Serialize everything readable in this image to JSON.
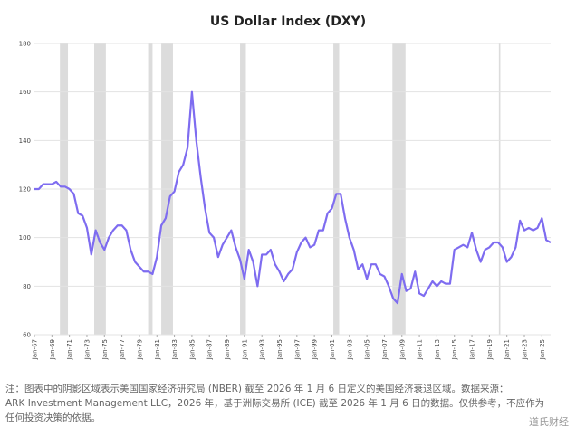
{
  "chart_data": {
    "type": "line",
    "title": "US Dollar Index (DXY)",
    "x": [
      "Jan-67",
      "Jul-67",
      "Jan-68",
      "Jul-68",
      "Jan-69",
      "Jul-69",
      "Jan-70",
      "Jul-70",
      "Jan-71",
      "Jul-71",
      "Jan-72",
      "Jul-72",
      "Jan-73",
      "Jul-73",
      "Jan-74",
      "Jul-74",
      "Jan-75",
      "Jul-75",
      "Jan-76",
      "Jul-76",
      "Jan-77",
      "Jul-77",
      "Jan-78",
      "Jul-78",
      "Jan-79",
      "Jul-79",
      "Jan-80",
      "Jul-80",
      "Jan-81",
      "Jul-81",
      "Jan-82",
      "Jul-82",
      "Jan-83",
      "Jul-83",
      "Jan-84",
      "Jul-84",
      "Jan-85",
      "Jul-85",
      "Jan-86",
      "Jul-86",
      "Jan-87",
      "Jul-87",
      "Jan-88",
      "Jul-88",
      "Jan-89",
      "Jul-89",
      "Jan-90",
      "Jul-90",
      "Jan-91",
      "Jul-91",
      "Jan-92",
      "Jul-92",
      "Jan-93",
      "Jul-93",
      "Jan-94",
      "Jul-94",
      "Jan-95",
      "Jul-95",
      "Jan-96",
      "Jul-96",
      "Jan-97",
      "Jul-97",
      "Jan-98",
      "Jul-98",
      "Jan-99",
      "Jul-99",
      "Jan-00",
      "Jul-00",
      "Jan-01",
      "Jul-01",
      "Jan-02",
      "Jul-02",
      "Jan-03",
      "Jul-03",
      "Jan-04",
      "Jul-04",
      "Jan-05",
      "Jul-05",
      "Jan-06",
      "Jul-06",
      "Jan-07",
      "Jul-07",
      "Jan-08",
      "Jul-08",
      "Jan-09",
      "Jul-09",
      "Jan-10",
      "Jul-10",
      "Jan-11",
      "Jul-11",
      "Jan-12",
      "Jul-12",
      "Jan-13",
      "Jul-13",
      "Jan-14",
      "Jul-14",
      "Jan-15",
      "Jul-15",
      "Jan-16",
      "Jul-16",
      "Jan-17",
      "Jul-17",
      "Jan-18",
      "Jul-18",
      "Jan-19",
      "Jul-19",
      "Jan-20",
      "Jul-20",
      "Jan-21",
      "Jul-21",
      "Jan-22",
      "Jul-22",
      "Jan-23",
      "Jul-23",
      "Jan-24",
      "Jul-24",
      "Jan-25",
      "Jul-25",
      "Jan-26"
    ],
    "series": [
      {
        "color": "#7e6cf0",
        "values": [
          120,
          120,
          122,
          122,
          122,
          123,
          121,
          121,
          120,
          118,
          110,
          109,
          104,
          93,
          103,
          98,
          95,
          100,
          103,
          105,
          105,
          103,
          95,
          90,
          88,
          86,
          86,
          85,
          92,
          105,
          108,
          117,
          119,
          127,
          130,
          137,
          160,
          140,
          125,
          112,
          102,
          100,
          92,
          97,
          100,
          103,
          96,
          91,
          83,
          95,
          90,
          80,
          93,
          93,
          95,
          89,
          86,
          82,
          85,
          87,
          94,
          98,
          100,
          96,
          97,
          103,
          103,
          110,
          112,
          118,
          118,
          108,
          100,
          95,
          87,
          89,
          83,
          89,
          89,
          85,
          84,
          80,
          75,
          73,
          85,
          78,
          79,
          86,
          77,
          76,
          79,
          82,
          80,
          82,
          81,
          81,
          95,
          96,
          97,
          96,
          102,
          95,
          90,
          95,
          96,
          98,
          98,
          96,
          90,
          92,
          96,
          107,
          103,
          104,
          103,
          104,
          108,
          99,
          98
        ]
      }
    ],
    "recessions": [
      [
        "Dec-69",
        "Nov-70"
      ],
      [
        "Nov-73",
        "Mar-75"
      ],
      [
        "Jan-80",
        "Jul-80"
      ],
      [
        "Jul-81",
        "Nov-82"
      ],
      [
        "Jul-90",
        "Mar-91"
      ],
      [
        "Mar-01",
        "Nov-01"
      ],
      [
        "Dec-07",
        "Jun-09"
      ],
      [
        "Feb-20",
        "Apr-20"
      ]
    ],
    "ylim": [
      60,
      180
    ],
    "yticks": [
      60,
      80,
      100,
      120,
      140,
      160,
      180
    ],
    "xlim": [
      "Jan-67",
      "Jan-26"
    ],
    "xticks": [
      "Jan-67",
      "Jan-69",
      "Jan-71",
      "Jan-73",
      "Jan-75",
      "Jan-77",
      "Jan-79",
      "Jan-81",
      "Jan-83",
      "Jan-85",
      "Jan-87",
      "Jan-89",
      "Jan-91",
      "Jan-93",
      "Jan-95",
      "Jan-97",
      "Jan-99",
      "Jan-01",
      "Jan-03",
      "Jan-05",
      "Jan-07",
      "Jan-09",
      "Jan-11",
      "Jan-13",
      "Jan-15",
      "Jan-17",
      "Jan-19",
      "Jan-21",
      "Jan-23",
      "Jan-25"
    ],
    "grid": true
  },
  "footnote": [
    "注：图表中的阴影区域表示美国国家经济研究局 (NBER) 截至 2026 年 1 月 6 日定义的美国经济衰退区域。数据来源：",
    "ARK Investment Management LLC，2026 年，基于洲际交易所 (ICE) 截至 2026 年 1 月 6 日的数据。仅供参考，不应作为",
    "任何投资决策的依据。"
  ],
  "watermark": "道氏财经"
}
